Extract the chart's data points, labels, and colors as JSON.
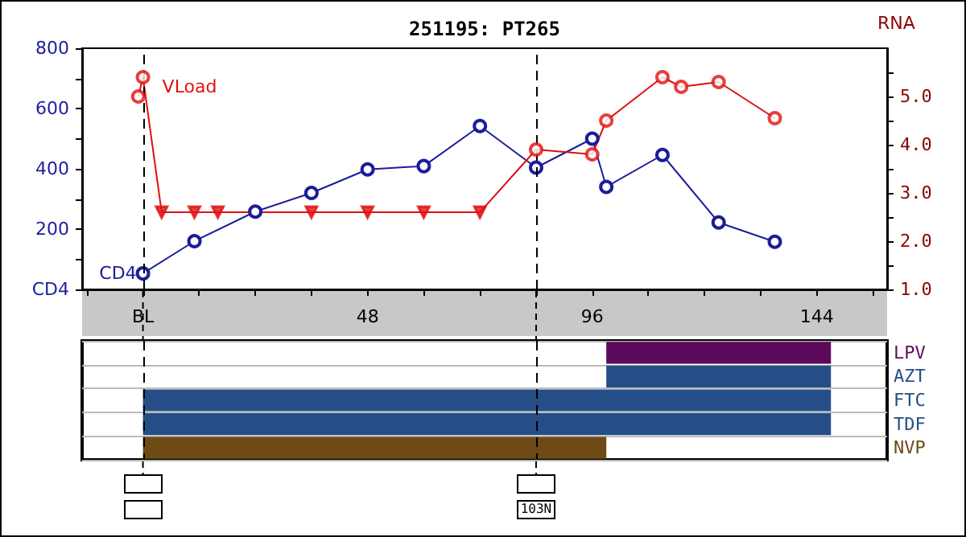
{
  "chart_data": [
    {
      "type": "line",
      "title": "251195: PT265",
      "y2label": "RNA",
      "xlim": [
        -13,
        159
      ],
      "xticks": [
        {
          "value": -12,
          "label": null
        },
        {
          "value": 0,
          "label": "BL"
        },
        {
          "value": 12,
          "label": null
        },
        {
          "value": 24,
          "label": null
        },
        {
          "value": 36,
          "label": null
        },
        48,
        {
          "value": 60,
          "label": null
        },
        {
          "value": 72,
          "label": null
        },
        {
          "value": 84,
          "label": null
        },
        96,
        {
          "value": 108,
          "label": null
        },
        {
          "value": 120,
          "label": null
        },
        {
          "value": 132,
          "label": null
        },
        144,
        {
          "value": 156,
          "label": null
        }
      ],
      "ylim": [
        0,
        800
      ],
      "yticks": [
        {
          "value": 0,
          "label": "CD4"
        },
        {
          "value": 100,
          "label": null
        },
        200,
        {
          "value": 300,
          "label": null
        },
        400,
        {
          "value": 500,
          "label": null
        },
        600,
        {
          "value": 700,
          "label": null
        },
        800
      ],
      "y2lim": [
        1,
        6
      ],
      "y2ticks": [
        {
          "value": 1,
          "label": "1.0"
        },
        {
          "value": 1.5,
          "label": null
        },
        {
          "value": 2,
          "label": "2.0"
        },
        {
          "value": 2.5,
          "label": null
        },
        {
          "value": 3,
          "label": "3.0"
        },
        {
          "value": 3.5,
          "label": null
        },
        {
          "value": 4,
          "label": "4.0"
        },
        {
          "value": 4.5,
          "label": null
        },
        {
          "value": 5,
          "label": "5.0"
        },
        {
          "value": 5.5,
          "label": null
        }
      ],
      "grid": false,
      "legend": false,
      "series": [
        {
          "name": "CD4",
          "type": "line",
          "color": "#1c1c9c",
          "marker": "circle",
          "x": [
            0,
            11,
            24,
            36,
            48,
            60,
            72,
            84,
            96,
            99,
            111,
            123,
            135
          ],
          "values": [
            53,
            160,
            258,
            320,
            398,
            409,
            542,
            404,
            500,
            340,
            446,
            222,
            158
          ]
        },
        {
          "name": "VLoad",
          "type": "line",
          "axis": "y2",
          "color": "#e01010",
          "marker": "none",
          "x": [
            -1,
            0,
            4,
            11,
            16,
            36,
            48,
            60,
            72,
            84,
            96,
            99,
            111,
            115,
            123,
            135
          ],
          "values": [
            5.0,
            5.4,
            2.6,
            2.6,
            2.6,
            2.6,
            2.6,
            2.6,
            2.6,
            3.9,
            3.8,
            4.5,
            5.4,
            5.2,
            5.3,
            4.55
          ]
        },
        {
          "type": "scatter",
          "axis": "y2",
          "color": "#e01010",
          "marker": "circle",
          "x": [
            -1,
            0,
            84,
            96,
            99,
            111,
            115,
            123,
            135
          ],
          "values": [
            5.0,
            5.4,
            3.9,
            3.8,
            4.5,
            5.4,
            5.2,
            5.3,
            4.55
          ]
        },
        {
          "type": "scatter",
          "axis": "y2",
          "color": "#e01010",
          "marker": "triangle",
          "x": [
            4,
            11,
            16,
            36,
            48,
            60,
            72
          ],
          "values": [
            2.6,
            2.6,
            2.6,
            2.6,
            2.6,
            2.6,
            2.6
          ]
        }
      ],
      "ref_lines": [
        {
          "axis": "x",
          "value": 0,
          "color": "#000000",
          "line_style": "dashed"
        },
        {
          "axis": "x",
          "value": 84,
          "color": "#000000",
          "line_style": "dashed"
        }
      ]
    },
    {
      "type": "bar",
      "orientation": "horizontal",
      "categories": [
        "LPV",
        "AZT",
        "FTC",
        "TDF",
        "NVP"
      ],
      "base": [
        99,
        99,
        0,
        0,
        0
      ],
      "values": [
        48,
        48,
        147,
        147,
        99
      ],
      "colors": [
        "#5c0a5c",
        "#254e86",
        "#254e86",
        "#254e86",
        "#6e4a14"
      ],
      "xlim": [
        -13,
        159
      ],
      "grid": "y",
      "tick_labels": "y",
      "ref_lines": [
        {
          "axis": "x",
          "value": 0,
          "color": "#000000",
          "line_style": "dashed"
        },
        {
          "axis": "x",
          "value": 84,
          "color": "#000000",
          "line_style": "dashed"
        }
      ],
      "annotations": [
        "103N"
      ]
    }
  ]
}
